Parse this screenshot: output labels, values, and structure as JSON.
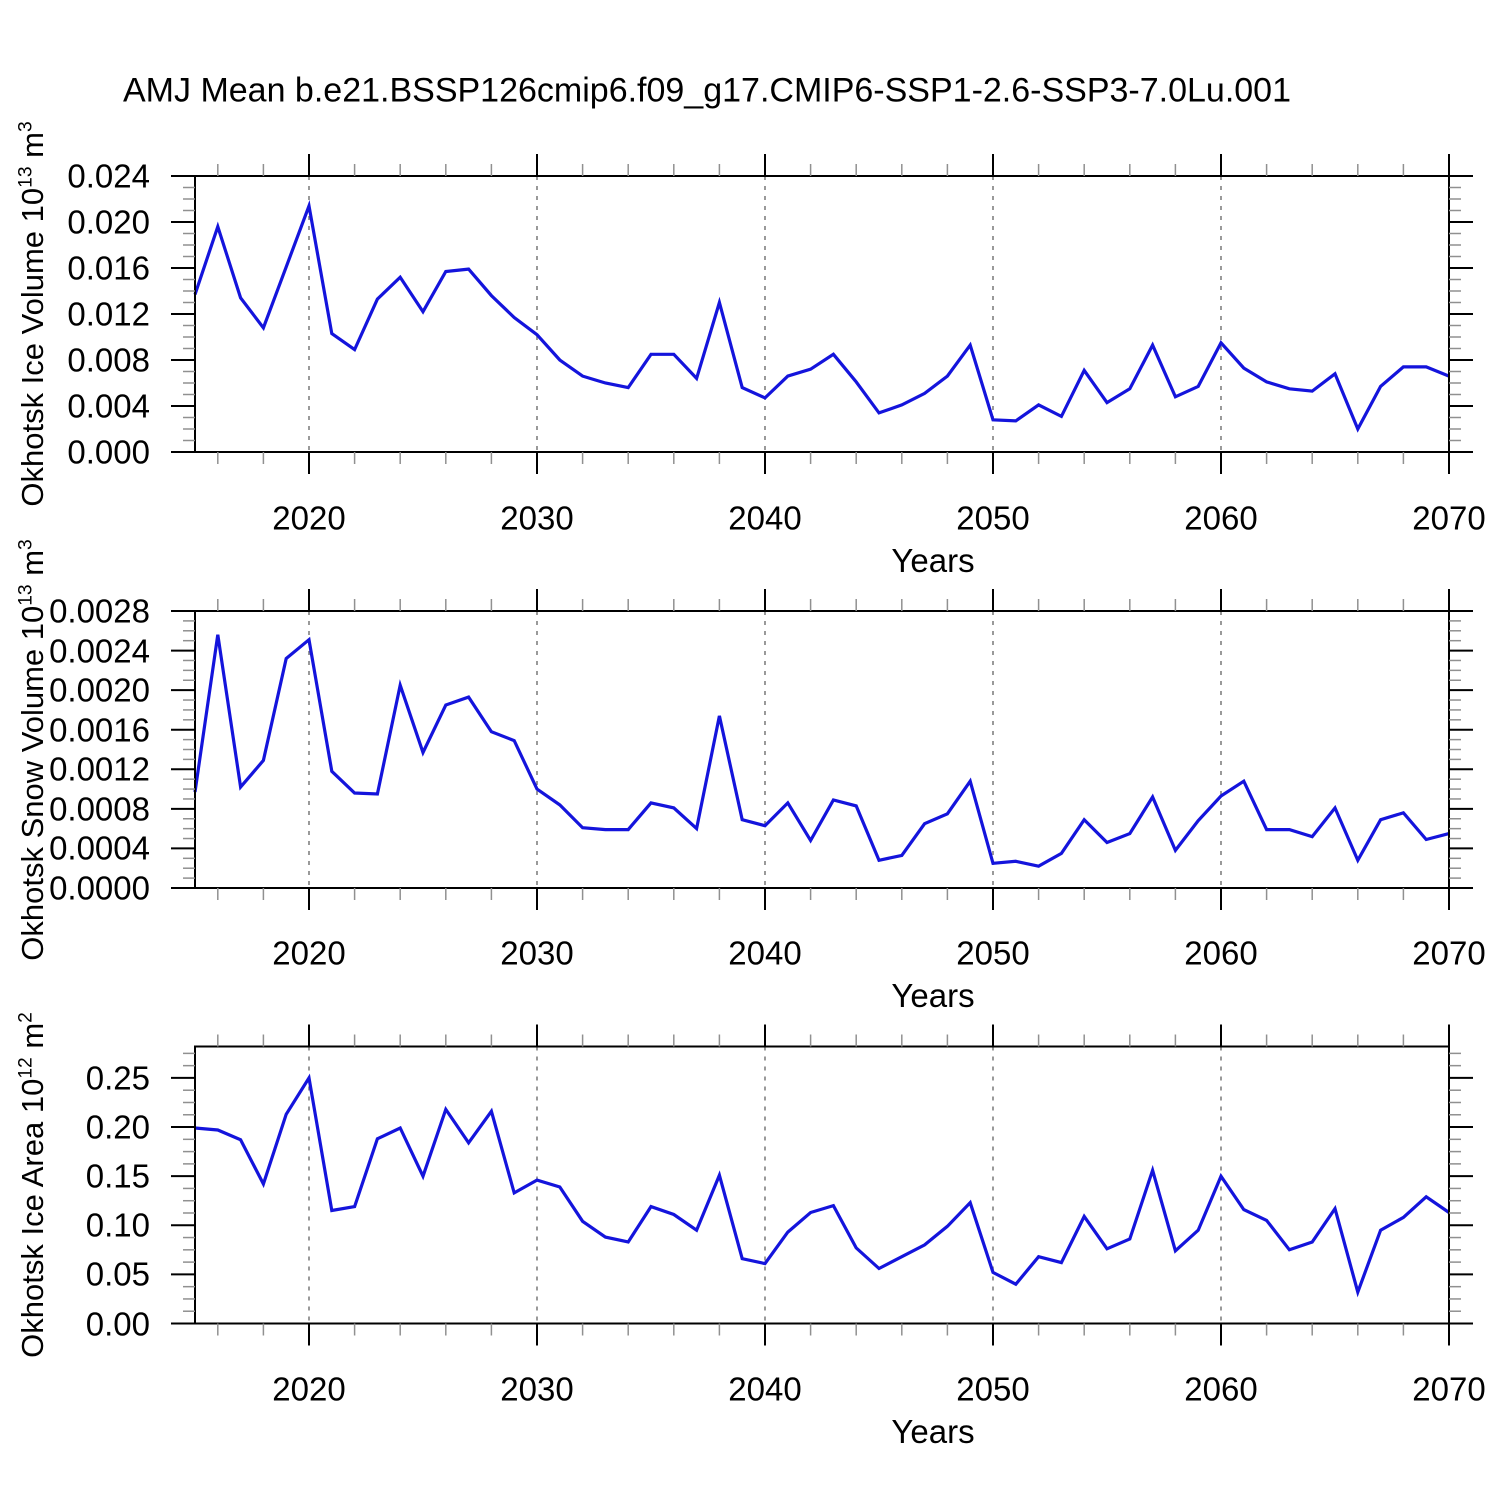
{
  "title": "AMJ Mean b.e21.BSSP126cmip6.f09_g17.CMIP6-SSP1-2.6-SSP3-7.0Lu.001",
  "chart_data": {
    "type": "line",
    "x_label": "Years",
    "line_color": "#1414dc",
    "grid_color": "#808080",
    "minor_tick_color": "#909090",
    "x_domain": [
      2015,
      2070
    ],
    "x_major_ticks": [
      2020,
      2030,
      2040,
      2050,
      2060,
      2070
    ],
    "x_minor_step": 2,
    "grid_years": [
      2020,
      2030,
      2040,
      2050,
      2060
    ],
    "years": [
      2015,
      2016,
      2017,
      2018,
      2019,
      2020,
      2021,
      2022,
      2023,
      2024,
      2025,
      2026,
      2027,
      2028,
      2029,
      2030,
      2031,
      2032,
      2033,
      2034,
      2035,
      2036,
      2037,
      2038,
      2039,
      2040,
      2041,
      2042,
      2043,
      2044,
      2045,
      2046,
      2047,
      2048,
      2049,
      2050,
      2051,
      2052,
      2053,
      2054,
      2055,
      2056,
      2057,
      2058,
      2059,
      2060,
      2061,
      2062,
      2063,
      2064,
      2065,
      2066,
      2067,
      2068,
      2069,
      2070
    ],
    "panels": [
      {
        "name": "okhotsk-ice-volume",
        "ylabel": {
          "pre": "Okhotsk Ice Volume 10",
          "sup1": "13",
          "mid": " m",
          "sup2": "3"
        },
        "ylim": [
          0,
          0.024
        ],
        "ytick_values": [
          0,
          0.004,
          0.008,
          0.012,
          0.016,
          0.02,
          0.024
        ],
        "ytick_labels": [
          "0.000",
          "0.004",
          "0.008",
          "0.012",
          "0.016",
          "0.020",
          "0.024"
        ],
        "y_minor_step": 0.001,
        "values": [
          0.0137,
          0.0196,
          0.0134,
          0.0108,
          0.0161,
          0.0214,
          0.0103,
          0.0089,
          0.0133,
          0.0152,
          0.0122,
          0.0157,
          0.0159,
          0.0136,
          0.0117,
          0.0102,
          0.008,
          0.0066,
          0.006,
          0.0056,
          0.0085,
          0.0085,
          0.0064,
          0.013,
          0.0056,
          0.0047,
          0.0066,
          0.0072,
          0.0085,
          0.0061,
          0.0034,
          0.0041,
          0.0051,
          0.0066,
          0.0093,
          0.0028,
          0.0027,
          0.0041,
          0.0031,
          0.0071,
          0.0043,
          0.0055,
          0.0093,
          0.0048,
          0.0057,
          0.0095,
          0.0073,
          0.0061,
          0.0055,
          0.0053,
          0.0068,
          0.002,
          0.0057,
          0.0074,
          0.0074,
          0.0066
        ]
      },
      {
        "name": "okhotsk-snow-volume",
        "ylabel": {
          "pre": "Okhotsk Snow Volume 10",
          "sup1": "13",
          "mid": " m",
          "sup2": "3"
        },
        "ylim": [
          0,
          0.0028
        ],
        "ytick_values": [
          0,
          0.0004,
          0.0008,
          0.0012,
          0.0016,
          0.002,
          0.0024,
          0.0028
        ],
        "ytick_labels": [
          "0.0000",
          "0.0004",
          "0.0008",
          "0.0012",
          "0.0016",
          "0.0020",
          "0.0024",
          "0.0028"
        ],
        "y_minor_step": 0.0001,
        "values": [
          0.00097,
          0.00256,
          0.00102,
          0.00129,
          0.00232,
          0.00251,
          0.00118,
          0.00096,
          0.00095,
          0.00205,
          0.00137,
          0.00185,
          0.00193,
          0.00158,
          0.00149,
          0.001,
          0.00084,
          0.00061,
          0.00059,
          0.00059,
          0.00086,
          0.00081,
          0.0006,
          0.00174,
          0.00069,
          0.00063,
          0.00086,
          0.00048,
          0.00089,
          0.00083,
          0.00028,
          0.00033,
          0.00065,
          0.00075,
          0.00108,
          0.00025,
          0.00027,
          0.00022,
          0.00035,
          0.00069,
          0.00046,
          0.00055,
          0.00092,
          0.00038,
          0.00068,
          0.00093,
          0.00108,
          0.00059,
          0.00059,
          0.00052,
          0.00081,
          0.00028,
          0.00069,
          0.00076,
          0.00049,
          0.00055
        ]
      },
      {
        "name": "okhotsk-ice-area",
        "ylabel": {
          "pre": "Okhotsk Ice Area 10",
          "sup1": "12",
          "mid": " m",
          "sup2": "2"
        },
        "ylim": [
          0,
          0.282
        ],
        "ytick_values": [
          0,
          0.05,
          0.1,
          0.15,
          0.2,
          0.25
        ],
        "ytick_labels": [
          "0.00",
          "0.05",
          "0.10",
          "0.15",
          "0.20",
          "0.25"
        ],
        "y_minor_step": 0.0125,
        "values": [
          0.199,
          0.197,
          0.187,
          0.142,
          0.213,
          0.25,
          0.115,
          0.119,
          0.188,
          0.199,
          0.15,
          0.218,
          0.184,
          0.216,
          0.133,
          0.146,
          0.139,
          0.104,
          0.088,
          0.083,
          0.119,
          0.111,
          0.095,
          0.151,
          0.066,
          0.061,
          0.093,
          0.113,
          0.12,
          0.077,
          0.056,
          0.068,
          0.08,
          0.099,
          0.123,
          0.052,
          0.04,
          0.068,
          0.062,
          0.109,
          0.076,
          0.086,
          0.156,
          0.074,
          0.095,
          0.15,
          0.116,
          0.105,
          0.075,
          0.083,
          0.117,
          0.032,
          0.095,
          0.108,
          0.129,
          0.113
        ]
      }
    ]
  }
}
